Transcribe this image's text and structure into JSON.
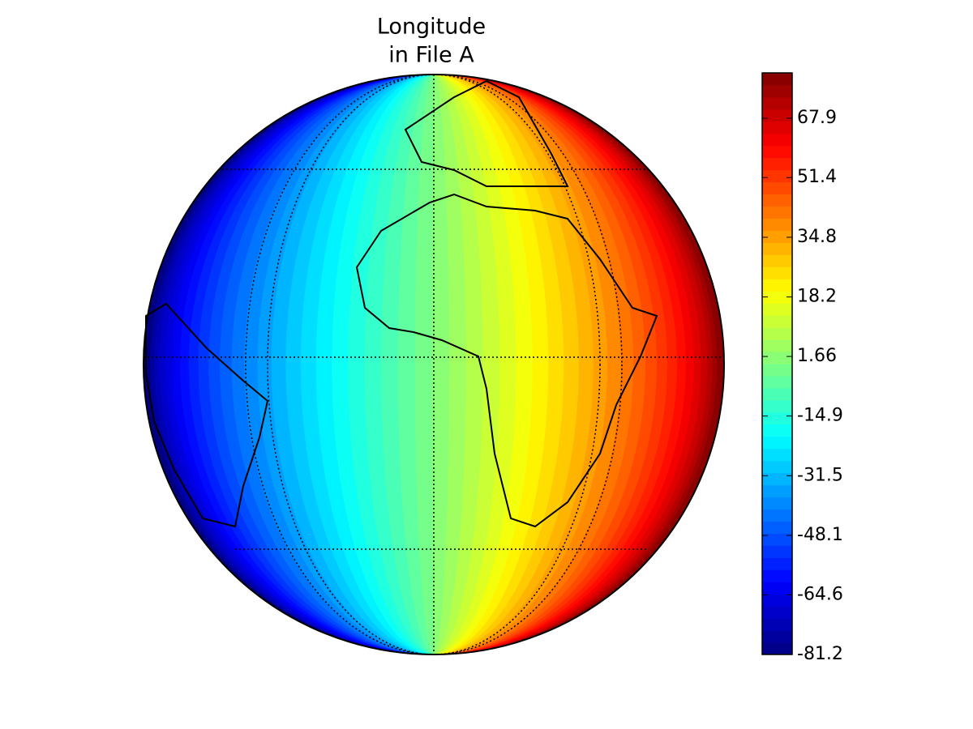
{
  "chart_data": {
    "type": "globe",
    "title": [
      "Longitude",
      "in File A"
    ],
    "colormap": "jet",
    "clim": [
      -81.2,
      80.5
    ],
    "colorbar_ticks": [
      -81.2,
      -64.6,
      -48.1,
      -31.5,
      -14.9,
      1.66,
      18.2,
      34.8,
      51.4,
      67.9
    ]
  }
}
